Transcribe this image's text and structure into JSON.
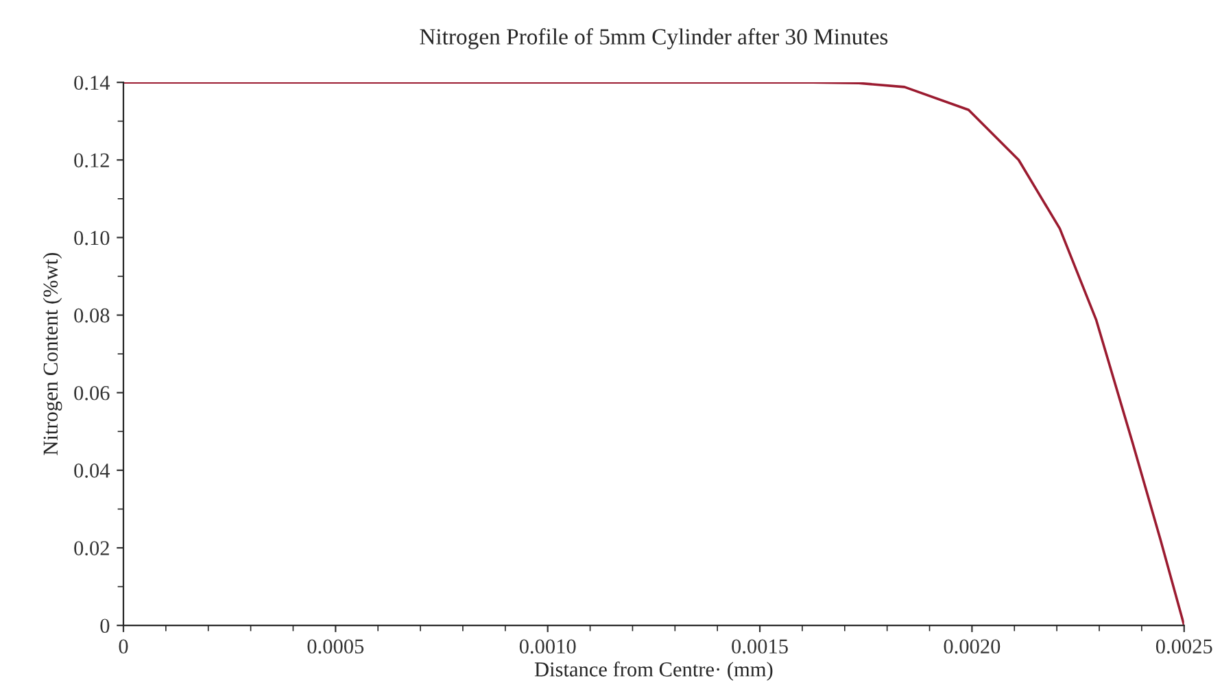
{
  "chart_data": {
    "type": "line",
    "title": "Nitrogen Profile of 5mm Cylinder after 30 Minutes",
    "xlabel": "Distance from Centre· (mm)",
    "ylabel": "Nitrogen Content (%wt)",
    "series": [
      {
        "color": "#9b1b30",
        "x": [
          0,
          0.0005,
          0.001,
          0.0015,
          0.001625,
          0.001733,
          0.001841,
          0.001992,
          0.00211,
          0.002207,
          0.002293,
          0.002379,
          0.002444,
          0.0025
        ],
        "values": [
          0.14,
          0.14,
          0.14,
          0.14,
          0.14,
          0.1398,
          0.1388,
          0.1329,
          0.12,
          0.1023,
          0.0787,
          0.0469,
          0.0222,
          0
        ]
      }
    ],
    "xlim": [
      0,
      0.0025
    ],
    "xticks": [
      0,
      0.0005,
      {
        "value": 0.001,
        "label": "0.0010"
      },
      0.0015,
      {
        "value": 0.002,
        "label": "0.0020"
      },
      0.0025
    ],
    "ylim": [
      0,
      0.14
    ],
    "yticks": [
      0,
      0.02,
      0.04,
      0.06,
      0.08,
      {
        "value": 0.1,
        "label": "0.10"
      },
      0.12,
      0.14
    ],
    "grid": false,
    "legend": false,
    "marker": "none",
    "line_style": "solid"
  }
}
